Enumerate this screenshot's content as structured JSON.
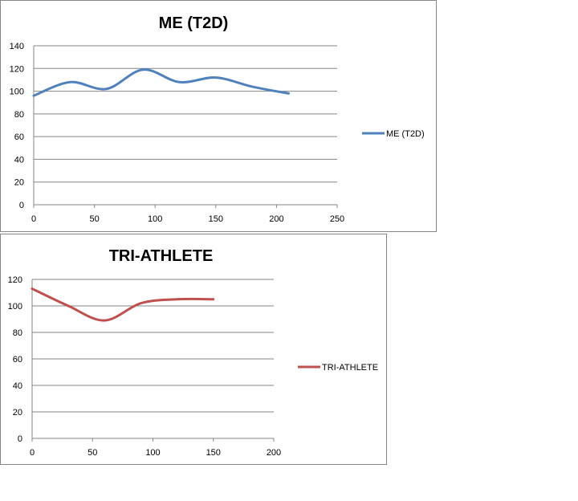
{
  "chart_data": [
    {
      "type": "line",
      "title": "ME (T2D)",
      "xlabel": "",
      "ylabel": "",
      "xlim": [
        0,
        250
      ],
      "ylim": [
        0,
        140
      ],
      "x_ticks": [
        0,
        50,
        100,
        150,
        200,
        250
      ],
      "y_ticks": [
        0,
        20,
        40,
        60,
        80,
        100,
        120,
        140
      ],
      "grid": "horizontal",
      "legend": "right",
      "series": [
        {
          "name": "ME (T2D)",
          "color": "#4F81BD",
          "x": [
            0,
            30,
            60,
            90,
            120,
            150,
            180,
            210
          ],
          "y": [
            96,
            108,
            102,
            119,
            108,
            112,
            104,
            98
          ]
        }
      ]
    },
    {
      "type": "line",
      "title": "TRI-ATHLETE",
      "xlabel": "",
      "ylabel": "",
      "xlim": [
        0,
        200
      ],
      "ylim": [
        0,
        120
      ],
      "x_ticks": [
        0,
        50,
        100,
        150,
        200
      ],
      "y_ticks": [
        0,
        20,
        40,
        60,
        80,
        100,
        120
      ],
      "grid": "horizontal",
      "legend": "right",
      "series": [
        {
          "name": "TRI-ATHLETE",
          "color": "#C0504D",
          "x": [
            0,
            30,
            60,
            90,
            120,
            150
          ],
          "y": [
            113,
            100,
            89,
            102,
            105,
            105
          ]
        }
      ]
    }
  ]
}
